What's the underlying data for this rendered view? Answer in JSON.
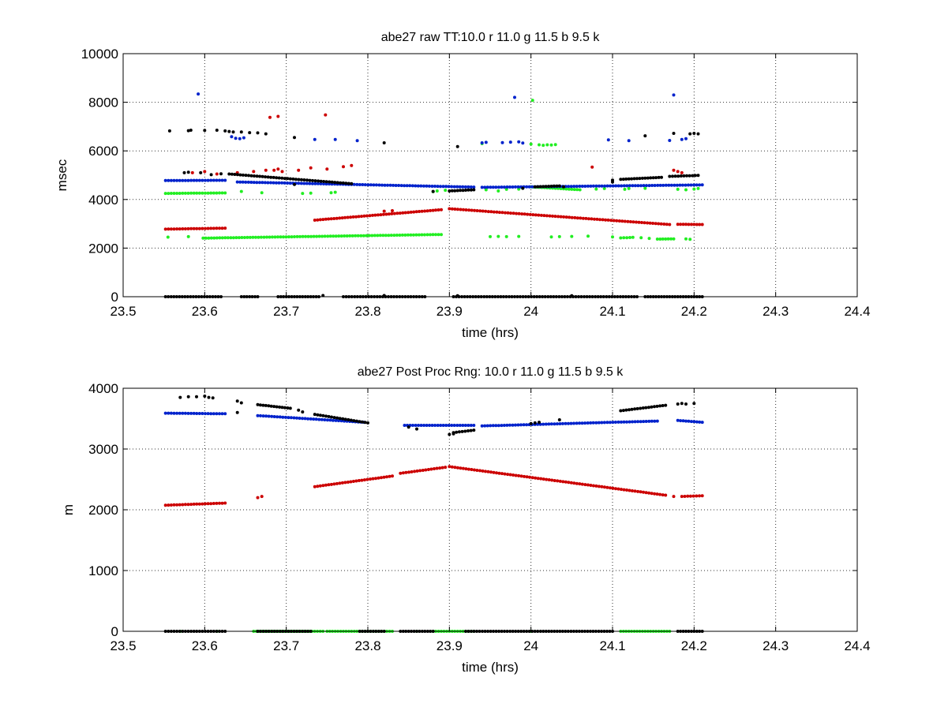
{
  "colors": {
    "red": "#cc0000",
    "green": "#22ee22",
    "blue": "#0022cc",
    "black": "#000000"
  },
  "chart_data": [
    {
      "type": "scatter",
      "title": "abe27 raw TT:10.0 r  11.0 g  11.5 b  9.5 k",
      "xlabel": "time (hrs)",
      "ylabel": "msec",
      "xlim": [
        23.5,
        24.4
      ],
      "ylim": [
        0,
        10000
      ],
      "xticks": [
        23.5,
        23.6,
        23.7,
        23.8,
        23.9,
        24.0,
        24.1,
        24.2,
        24.3,
        24.4
      ],
      "xtick_labels": [
        "23.5",
        "23.6",
        "23.7",
        "23.8",
        "23.9",
        "24",
        "24.1",
        "24.2",
        "24.3",
        "24.4"
      ],
      "yticks": [
        0,
        2000,
        4000,
        6000,
        8000,
        10000
      ],
      "ytick_labels": [
        "0",
        "2000",
        "4000",
        "6000",
        "8000",
        "10000"
      ],
      "grid": true,
      "legend": "none",
      "series": [
        {
          "color": "red",
          "segments": [
            {
              "x0": 23.552,
              "y0": 2780,
              "x1": 23.625,
              "y1": 2820
            },
            {
              "x0": 23.735,
              "y0": 3150,
              "x1": 23.89,
              "y1": 3580
            },
            {
              "x0": 23.9,
              "y0": 3620,
              "x1": 24.17,
              "y1": 2970
            },
            {
              "x0": 24.18,
              "y0": 2980,
              "x1": 24.21,
              "y1": 2970
            }
          ],
          "points": [
            [
              23.585,
              5100
            ],
            [
              23.6,
              5150
            ],
            [
              23.615,
              5050
            ],
            [
              23.64,
              5100
            ],
            [
              23.66,
              5150
            ],
            [
              23.675,
              5200
            ],
            [
              23.685,
              5200
            ],
            [
              23.69,
              5250
            ],
            [
              23.695,
              5150
            ],
            [
              23.68,
              7380
            ],
            [
              23.69,
              7420
            ],
            [
              23.748,
              7480
            ],
            [
              23.715,
              5200
            ],
            [
              23.73,
              5300
            ],
            [
              23.75,
              5250
            ],
            [
              23.77,
              5350
            ],
            [
              23.78,
              5400
            ],
            [
              24.075,
              5330
            ],
            [
              24.175,
              5200
            ],
            [
              24.18,
              5150
            ],
            [
              24.185,
              5100
            ],
            [
              23.82,
              3520
            ],
            [
              23.83,
              3540
            ]
          ]
        },
        {
          "color": "green",
          "segments": [
            {
              "x0": 23.598,
              "y0": 2410,
              "x1": 23.89,
              "y1": 2560
            },
            {
              "x0": 23.552,
              "y0": 4250,
              "x1": 23.625,
              "y1": 4270
            },
            {
              "x0": 24.0,
              "y0": 4520,
              "x1": 24.06,
              "y1": 4400
            },
            {
              "x0": 24.11,
              "y0": 2420,
              "x1": 24.125,
              "y1": 2440
            },
            {
              "x0": 24.155,
              "y0": 2370,
              "x1": 24.175,
              "y1": 2380
            }
          ],
          "points": [
            [
              23.555,
              2450
            ],
            [
              23.58,
              2470
            ],
            [
              23.95,
              2470
            ],
            [
              23.96,
              2480
            ],
            [
              23.97,
              2470
            ],
            [
              23.985,
              2480
            ],
            [
              24.025,
              2460
            ],
            [
              24.035,
              2470
            ],
            [
              24.05,
              2480
            ],
            [
              24.07,
              2490
            ],
            [
              24.1,
              2460
            ],
            [
              24.135,
              2430
            ],
            [
              24.145,
              2400
            ],
            [
              24.19,
              2380
            ],
            [
              24.195,
              2360
            ],
            [
              23.645,
              4330
            ],
            [
              23.67,
              4280
            ],
            [
              23.72,
              4250
            ],
            [
              23.73,
              4260
            ],
            [
              23.755,
              4280
            ],
            [
              23.76,
              4300
            ],
            [
              23.88,
              4320
            ],
            [
              23.885,
              4350
            ],
            [
              23.895,
              4380
            ],
            [
              23.945,
              4400
            ],
            [
              23.96,
              4350
            ],
            [
              23.97,
              4420
            ],
            [
              23.985,
              4430
            ],
            [
              24.08,
              4430
            ],
            [
              24.09,
              4450
            ],
            [
              24.115,
              4420
            ],
            [
              24.12,
              4450
            ],
            [
              24.14,
              4460
            ],
            [
              24.18,
              4420
            ],
            [
              24.19,
              4400
            ],
            [
              24.2,
              4430
            ],
            [
              24.205,
              4450
            ],
            [
              23.94,
              6300
            ],
            [
              24.0,
              6280
            ],
            [
              24.01,
              6250
            ],
            [
              24.015,
              6230
            ],
            [
              24.02,
              6250
            ],
            [
              24.025,
              6240
            ],
            [
              24.03,
              6260
            ],
            [
              24.002,
              8080
            ]
          ]
        },
        {
          "color": "blue",
          "segments": [
            {
              "x0": 23.552,
              "y0": 4780,
              "x1": 23.625,
              "y1": 4790
            },
            {
              "x0": 23.64,
              "y0": 4720,
              "x1": 23.93,
              "y1": 4510
            },
            {
              "x0": 23.94,
              "y0": 4500,
              "x1": 24.21,
              "y1": 4600
            }
          ],
          "points": [
            [
              23.592,
              8340
            ],
            [
              23.633,
              6580
            ],
            [
              23.638,
              6520
            ],
            [
              23.643,
              6500
            ],
            [
              23.648,
              6540
            ],
            [
              23.735,
              6470
            ],
            [
              23.76,
              6470
            ],
            [
              23.787,
              6420
            ],
            [
              23.94,
              6330
            ],
            [
              23.945,
              6350
            ],
            [
              23.965,
              6340
            ],
            [
              23.975,
              6360
            ],
            [
              23.985,
              6370
            ],
            [
              23.99,
              6320
            ],
            [
              23.98,
              8200
            ],
            [
              24.095,
              6450
            ],
            [
              24.12,
              6420
            ],
            [
              24.17,
              6430
            ],
            [
              24.185,
              6470
            ],
            [
              24.19,
              6500
            ],
            [
              24.175,
              8300
            ]
          ]
        },
        {
          "color": "black",
          "segments": [
            {
              "x0": 23.552,
              "y0": 0,
              "x1": 23.62,
              "y1": 0
            },
            {
              "x0": 23.645,
              "y0": 0,
              "x1": 23.665,
              "y1": 0
            },
            {
              "x0": 23.69,
              "y0": 0,
              "x1": 23.74,
              "y1": 0
            },
            {
              "x0": 23.77,
              "y0": 0,
              "x1": 23.87,
              "y1": 0
            },
            {
              "x0": 23.905,
              "y0": 0,
              "x1": 24.13,
              "y1": 0
            },
            {
              "x0": 24.14,
              "y0": 0,
              "x1": 24.21,
              "y1": 0
            },
            {
              "x0": 23.63,
              "y0": 5050,
              "x1": 23.78,
              "y1": 4650
            },
            {
              "x0": 23.9,
              "y0": 4350,
              "x1": 23.93,
              "y1": 4400
            },
            {
              "x0": 24.005,
              "y0": 4520,
              "x1": 24.035,
              "y1": 4560
            },
            {
              "x0": 24.11,
              "y0": 4830,
              "x1": 24.16,
              "y1": 4910
            },
            {
              "x0": 24.17,
              "y0": 4950,
              "x1": 24.205,
              "y1": 4990
            }
          ],
          "points": [
            [
              23.557,
              6820
            ],
            [
              23.58,
              6830
            ],
            [
              23.583,
              6850
            ],
            [
              23.6,
              6840
            ],
            [
              23.615,
              6850
            ],
            [
              23.625,
              6820
            ],
            [
              23.63,
              6800
            ],
            [
              23.635,
              6780
            ],
            [
              23.645,
              6780
            ],
            [
              23.655,
              6750
            ],
            [
              23.665,
              6740
            ],
            [
              23.675,
              6700
            ],
            [
              23.71,
              6550
            ],
            [
              23.82,
              6330
            ],
            [
              23.575,
              5100
            ],
            [
              23.58,
              5120
            ],
            [
              23.595,
              5100
            ],
            [
              23.62,
              5060
            ],
            [
              23.608,
              5020
            ],
            [
              23.71,
              4620
            ],
            [
              23.88,
              4330
            ],
            [
              23.91,
              6180
            ],
            [
              23.99,
              4460
            ],
            [
              24.04,
              4520
            ],
            [
              24.1,
              4800
            ],
            [
              24.14,
              6620
            ],
            [
              24.175,
              6720
            ],
            [
              24.2,
              6720
            ],
            [
              24.205,
              6700
            ],
            [
              24.195,
              6700
            ],
            [
              24.1,
              4720
            ],
            [
              23.745,
              50
            ],
            [
              23.82,
              50
            ],
            [
              23.91,
              40
            ],
            [
              24.05,
              40
            ]
          ]
        }
      ]
    },
    {
      "type": "scatter",
      "title": "abe27 Post Proc Rng: 10.0 r  11.0 g  11.5 b  9.5  k",
      "xlabel": "time (hrs)",
      "ylabel": "m",
      "xlim": [
        23.5,
        24.4
      ],
      "ylim": [
        0,
        4000
      ],
      "xticks": [
        23.5,
        23.6,
        23.7,
        23.8,
        23.9,
        24.0,
        24.1,
        24.2,
        24.3,
        24.4
      ],
      "xtick_labels": [
        "23.5",
        "23.6",
        "23.7",
        "23.8",
        "23.9",
        "24",
        "24.1",
        "24.2",
        "24.3",
        "24.4"
      ],
      "yticks": [
        0,
        1000,
        2000,
        3000,
        4000
      ],
      "ytick_labels": [
        "0",
        "1000",
        "2000",
        "3000",
        "4000"
      ],
      "grid": true,
      "legend": "none",
      "series": [
        {
          "color": "red",
          "segments": [
            {
              "x0": 23.552,
              "y0": 2075,
              "x1": 23.625,
              "y1": 2110
            },
            {
              "x0": 23.735,
              "y0": 2380,
              "x1": 23.83,
              "y1": 2555
            },
            {
              "x0": 23.84,
              "y0": 2600,
              "x1": 23.895,
              "y1": 2700
            },
            {
              "x0": 23.9,
              "y0": 2710,
              "x1": 24.165,
              "y1": 2240
            },
            {
              "x0": 24.185,
              "y0": 2220,
              "x1": 24.21,
              "y1": 2230
            }
          ],
          "points": [
            [
              23.665,
              2200
            ],
            [
              23.67,
              2220
            ],
            [
              24.175,
              2220
            ]
          ]
        },
        {
          "color": "green",
          "segments": [
            {
              "x0": 23.66,
              "y0": 0,
              "x1": 23.745,
              "y1": 0
            },
            {
              "x0": 23.75,
              "y0": 0,
              "x1": 23.83,
              "y1": 0
            },
            {
              "x0": 23.88,
              "y0": 0,
              "x1": 23.93,
              "y1": 0
            },
            {
              "x0": 24.11,
              "y0": 0,
              "x1": 24.17,
              "y1": 0
            }
          ],
          "points": [
            [
              23.57,
              0
            ],
            [
              23.615,
              0
            ],
            [
              23.86,
              0
            ],
            [
              24.0,
              0
            ]
          ]
        },
        {
          "color": "blue",
          "segments": [
            {
              "x0": 23.552,
              "y0": 3590,
              "x1": 23.625,
              "y1": 3580
            },
            {
              "x0": 23.665,
              "y0": 3550,
              "x1": 23.795,
              "y1": 3440
            },
            {
              "x0": 23.845,
              "y0": 3390,
              "x1": 23.93,
              "y1": 3390
            },
            {
              "x0": 23.94,
              "y0": 3380,
              "x1": 24.155,
              "y1": 3460
            },
            {
              "x0": 24.18,
              "y0": 3470,
              "x1": 24.21,
              "y1": 3440
            }
          ],
          "points": []
        },
        {
          "color": "black",
          "segments": [
            {
              "x0": 23.552,
              "y0": 0,
              "x1": 23.625,
              "y1": 0
            },
            {
              "x0": 23.665,
              "y0": 0,
              "x1": 23.73,
              "y1": 0
            },
            {
              "x0": 23.79,
              "y0": 0,
              "x1": 23.82,
              "y1": 0
            },
            {
              "x0": 23.84,
              "y0": 0,
              "x1": 23.88,
              "y1": 0
            },
            {
              "x0": 23.92,
              "y0": 0,
              "x1": 24.1,
              "y1": 0
            },
            {
              "x0": 24.18,
              "y0": 0,
              "x1": 24.21,
              "y1": 0
            },
            {
              "x0": 23.665,
              "y0": 3730,
              "x1": 23.705,
              "y1": 3670
            },
            {
              "x0": 23.735,
              "y0": 3570,
              "x1": 23.8,
              "y1": 3430
            },
            {
              "x0": 23.905,
              "y0": 3270,
              "x1": 23.93,
              "y1": 3310
            },
            {
              "x0": 24.11,
              "y0": 3630,
              "x1": 24.165,
              "y1": 3720
            }
          ],
          "points": [
            [
              23.57,
              3850
            ],
            [
              23.58,
              3860
            ],
            [
              23.59,
              3860
            ],
            [
              23.6,
              3870
            ],
            [
              23.605,
              3850
            ],
            [
              23.61,
              3840
            ],
            [
              23.64,
              3790
            ],
            [
              23.645,
              3760
            ],
            [
              23.64,
              3600
            ],
            [
              23.715,
              3640
            ],
            [
              23.72,
              3610
            ],
            [
              23.85,
              3360
            ],
            [
              23.86,
              3330
            ],
            [
              23.9,
              3240
            ],
            [
              23.905,
              3250
            ],
            [
              24.0,
              3420
            ],
            [
              24.005,
              3430
            ],
            [
              24.01,
              3440
            ],
            [
              24.035,
              3480
            ],
            [
              24.18,
              3740
            ],
            [
              24.185,
              3750
            ],
            [
              24.19,
              3740
            ],
            [
              24.2,
              3750
            ]
          ]
        }
      ]
    }
  ]
}
